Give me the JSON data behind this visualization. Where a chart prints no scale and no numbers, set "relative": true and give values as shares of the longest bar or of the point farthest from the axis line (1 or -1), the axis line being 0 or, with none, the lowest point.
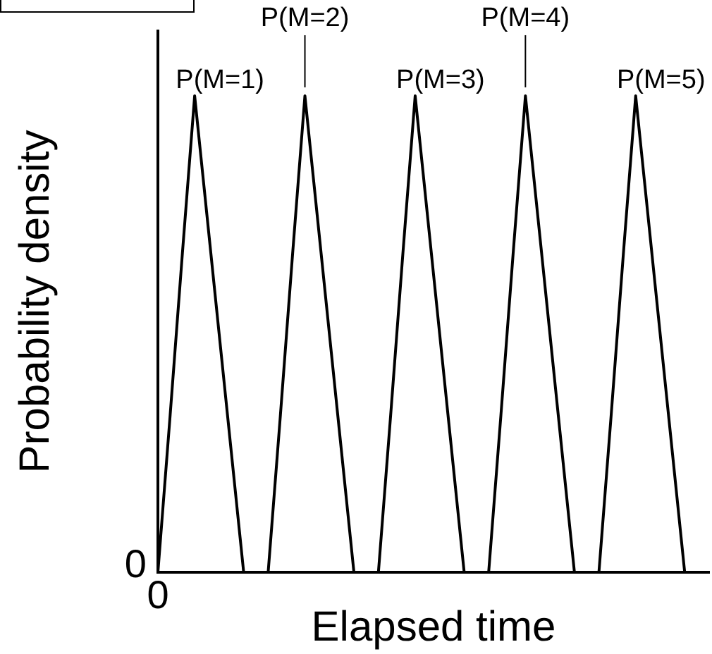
{
  "chart_data": {
    "type": "line",
    "relative": true,
    "ylabel": "Probability density",
    "xlabel": "Elapsed time",
    "categories": [
      null,
      null,
      null,
      null,
      null,
      null,
      null,
      null,
      null,
      null,
      null,
      null,
      null,
      null,
      null,
      null,
      null,
      null,
      null,
      null,
      null,
      null,
      null,
      null,
      null,
      null,
      null,
      null,
      null,
      null,
      null,
      null,
      null,
      null,
      null,
      null,
      null,
      null,
      null,
      null,
      null,
      null,
      null,
      null,
      null,
      null
    ],
    "series": [
      {
        "color": "#000000",
        "values": [
          0,
          0.33,
          0.67,
          1,
          0.75,
          0.5,
          0.25,
          0,
          0,
          0,
          0.33,
          0.67,
          1,
          0.75,
          0.5,
          0.25,
          0,
          0,
          0,
          0.33,
          0.67,
          1,
          0.75,
          0.5,
          0.25,
          0,
          0,
          0,
          0.33,
          0.67,
          1,
          0.75,
          0.5,
          0.25,
          0,
          0,
          0,
          0.33,
          0.67,
          1,
          0.75,
          0.5,
          0.25,
          0,
          null,
          null
        ]
      }
    ],
    "annotations": [
      "P(M=1)",
      "P(M=2)",
      "P(M=3)",
      "P(M=4)",
      "P(M=5)",
      "0",
      "0"
    ]
  }
}
